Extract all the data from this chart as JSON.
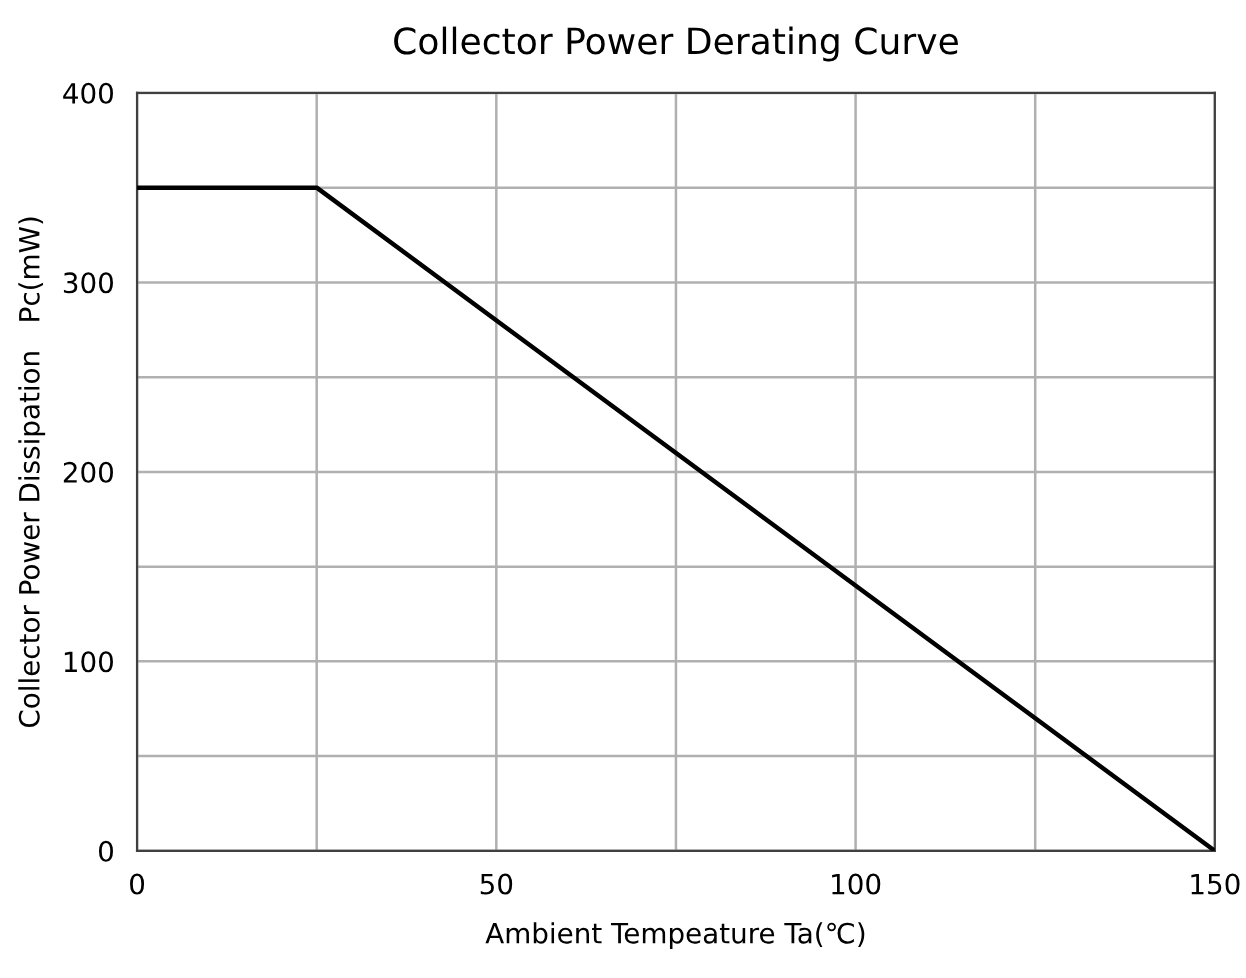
{
  "chart_data": {
    "type": "line",
    "title": "Collector Power Derating Curve",
    "xlabel": "Ambient Tempeature Ta(℃)",
    "ylabel": "Collector Power Dissipation   Pc(mW)",
    "series": [
      {
        "color": "#000000",
        "x": [
          0,
          25,
          150
        ],
        "values": [
          350,
          350,
          0
        ]
      }
    ],
    "xlim": [
      0,
      150
    ],
    "ylim": [
      0,
      400
    ],
    "xticks": [
      0,
      {
        "value": 25,
        "label": null
      },
      50,
      {
        "value": 75,
        "label": null
      },
      100,
      {
        "value": 125,
        "label": null
      },
      150
    ],
    "yticks": [
      0,
      {
        "value": 50,
        "label": null
      },
      100,
      {
        "value": 150,
        "label": null
      },
      200,
      {
        "value": 250,
        "label": null
      },
      300,
      {
        "value": 350,
        "label": null
      },
      400
    ],
    "grid": true,
    "marker": "none",
    "line_style": "solid"
  }
}
